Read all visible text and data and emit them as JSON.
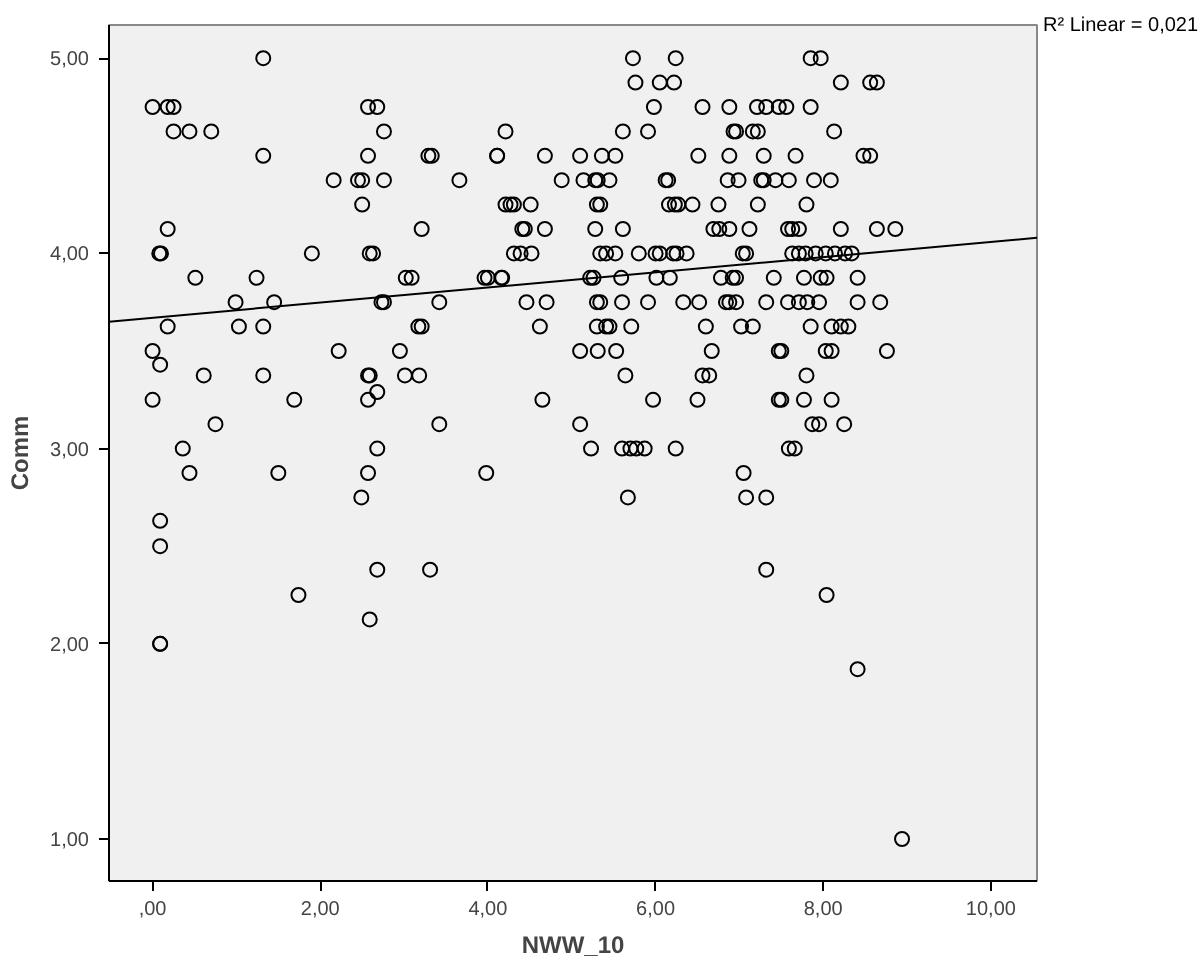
{
  "chart_data": {
    "type": "scatter",
    "xlabel": "NWW_10",
    "ylabel": "Comm",
    "annotations": [
      "R² Linear = 0,021"
    ],
    "xlim": [
      -0.52,
      10.55
    ],
    "ylim": [
      0.785,
      5.17
    ],
    "xticks": [
      {
        "value": 0,
        "label": ",00"
      },
      {
        "value": 2,
        "label": "2,00"
      },
      {
        "value": 4,
        "label": "4,00"
      },
      {
        "value": 6,
        "label": "6,00"
      },
      {
        "value": 8,
        "label": "8,00"
      },
      {
        "value": 10,
        "label": "10,00"
      }
    ],
    "yticks": [
      {
        "value": 1,
        "label": "1,00"
      },
      {
        "value": 2,
        "label": "2,00"
      },
      {
        "value": 3,
        "label": "3,00"
      },
      {
        "value": 4,
        "label": "4,00"
      },
      {
        "value": 5,
        "label": "5,00"
      }
    ],
    "grid": false,
    "series": [
      {
        "marker": "circle",
        "color": "#000000",
        "x": [
          1.32,
          0,
          0.18,
          0.25,
          2.57,
          2.68,
          0.25,
          0.44,
          0.7,
          2.76,
          4.21,
          1.32,
          2.57,
          3.29,
          3.33,
          4.11,
          2.16,
          2.45,
          2.5,
          2.76,
          3.66,
          2.5,
          4.21,
          0.18,
          3.21,
          0.08,
          0.1,
          1.9,
          2.59,
          2.63,
          0.51,
          1.24,
          3.02,
          3.09,
          3.96,
          4.16,
          0.99,
          1.45,
          2.73,
          2.76,
          3.42,
          0.18,
          1.03,
          1.32,
          3.17,
          3.21,
          0,
          2.22,
          2.95,
          0.09,
          0.61,
          1.32,
          2.57,
          2.59,
          3.01,
          3.18,
          0,
          1.69,
          2.57,
          2.68,
          0.75,
          3.42,
          0.36,
          2.68,
          0.44,
          1.5,
          2.57,
          3.98,
          2.49,
          0.09,
          0.09,
          2.68,
          3.31,
          1.74,
          2.59,
          0.09,
          0.09,
          5.73,
          6.24,
          5.76,
          6.05,
          6.22,
          5.98,
          6.56,
          6.88,
          7.21,
          7.32,
          7.47,
          5.61,
          5.91,
          6.93,
          6.96,
          7.16,
          7.22,
          4.11,
          4.68,
          5.1,
          5.36,
          5.52,
          6.51,
          6.88,
          7.29,
          4.88,
          5.14,
          5.28,
          5.31,
          5.45,
          6.12,
          6.15,
          6.86,
          6.99,
          7.26,
          7.29,
          7.43,
          4.27,
          4.31,
          4.51,
          5.3,
          5.34,
          6.16,
          6.23,
          6.27,
          6.44,
          6.75,
          7.22,
          4.41,
          4.44,
          4.68,
          5.28,
          5.61,
          6.69,
          6.76,
          6.88,
          7.12,
          4.31,
          4.39,
          4.52,
          5.34,
          5.41,
          5.52,
          5.8,
          6.0,
          6.05,
          6.21,
          6.25,
          6.37,
          7.04,
          7.08,
          4.0,
          4.17,
          5.22,
          5.26,
          5.59,
          6.01,
          6.17,
          6.78,
          6.92,
          6.96,
          7.41,
          4.46,
          4.7,
          5.3,
          5.34,
          5.6,
          5.91,
          6.33,
          6.52,
          6.84,
          6.88,
          6.96,
          7.32,
          4.62,
          5.3,
          5.41,
          5.45,
          5.71,
          6.6,
          7.02,
          7.16,
          5.1,
          5.31,
          5.53,
          6.67,
          7.47,
          5.64,
          6.56,
          6.64,
          4.65,
          5.97,
          6.5,
          7.47,
          5.1,
          5.23,
          5.6,
          5.7,
          5.77,
          5.87,
          6.24,
          7.05,
          5.67,
          7.08,
          7.32,
          7.32,
          7.85,
          7.97,
          8.21,
          8.56,
          8.64,
          7.56,
          7.85,
          8.13,
          7.67,
          8.48,
          8.56,
          7.59,
          7.89,
          8.09,
          7.8,
          7.58,
          7.63,
          7.71,
          8.21,
          8.64,
          8.86,
          7.63,
          7.71,
          7.79,
          7.91,
          8.03,
          8.14,
          8.26,
          8.34,
          7.77,
          7.97,
          8.04,
          8.41,
          7.58,
          7.71,
          7.81,
          7.95,
          8.41,
          8.68,
          7.85,
          8.1,
          8.21,
          8.3,
          7.5,
          8.03,
          8.1,
          8.76,
          7.8,
          7.5,
          7.77,
          8.1,
          7.87,
          7.95,
          8.25,
          7.59,
          7.66,
          8.04,
          8.41,
          8.94
        ],
        "values": [
          5.0,
          4.75,
          4.75,
          4.75,
          4.75,
          4.75,
          4.625,
          4.625,
          4.625,
          4.625,
          4.625,
          4.5,
          4.5,
          4.5,
          4.5,
          4.5,
          4.375,
          4.375,
          4.375,
          4.375,
          4.375,
          4.25,
          4.25,
          4.125,
          4.125,
          4.0,
          4.0,
          4.0,
          4.0,
          4.0,
          3.875,
          3.875,
          3.875,
          3.875,
          3.875,
          3.875,
          3.75,
          3.75,
          3.75,
          3.75,
          3.75,
          3.625,
          3.625,
          3.625,
          3.625,
          3.625,
          3.5,
          3.5,
          3.5,
          3.43,
          3.375,
          3.375,
          3.375,
          3.375,
          3.375,
          3.375,
          3.25,
          3.25,
          3.25,
          3.29,
          3.125,
          3.125,
          3.0,
          3.0,
          2.875,
          2.875,
          2.875,
          2.875,
          2.75,
          2.63,
          2.5,
          2.38,
          2.38,
          2.25,
          2.125,
          2.0,
          2.0,
          5.0,
          5.0,
          4.875,
          4.875,
          4.875,
          4.75,
          4.75,
          4.75,
          4.75,
          4.75,
          4.75,
          4.625,
          4.625,
          4.625,
          4.625,
          4.625,
          4.625,
          4.5,
          4.5,
          4.5,
          4.5,
          4.5,
          4.5,
          4.5,
          4.5,
          4.375,
          4.375,
          4.375,
          4.375,
          4.375,
          4.375,
          4.375,
          4.375,
          4.375,
          4.375,
          4.375,
          4.375,
          4.25,
          4.25,
          4.25,
          4.25,
          4.25,
          4.25,
          4.25,
          4.25,
          4.25,
          4.25,
          4.25,
          4.125,
          4.125,
          4.125,
          4.125,
          4.125,
          4.125,
          4.125,
          4.125,
          4.125,
          4.0,
          4.0,
          4.0,
          4.0,
          4.0,
          4.0,
          4.0,
          4.0,
          4.0,
          4.0,
          4.0,
          4.0,
          4.0,
          4.0,
          3.875,
          3.875,
          3.875,
          3.875,
          3.875,
          3.875,
          3.875,
          3.875,
          3.875,
          3.875,
          3.875,
          3.75,
          3.75,
          3.75,
          3.75,
          3.75,
          3.75,
          3.75,
          3.75,
          3.75,
          3.75,
          3.75,
          3.75,
          3.625,
          3.625,
          3.625,
          3.625,
          3.625,
          3.625,
          3.625,
          3.625,
          3.5,
          3.5,
          3.5,
          3.5,
          3.5,
          3.375,
          3.375,
          3.375,
          3.25,
          3.25,
          3.25,
          3.25,
          3.125,
          3.0,
          3.0,
          3.0,
          3.0,
          3.0,
          3.0,
          2.875,
          2.75,
          2.75,
          2.75,
          2.38,
          5.0,
          5.0,
          4.875,
          4.875,
          4.875,
          4.75,
          4.75,
          4.625,
          4.5,
          4.5,
          4.5,
          4.375,
          4.375,
          4.375,
          4.25,
          4.125,
          4.125,
          4.125,
          4.125,
          4.125,
          4.125,
          4.0,
          4.0,
          4.0,
          4.0,
          4.0,
          4.0,
          4.0,
          4.0,
          3.875,
          3.875,
          3.875,
          3.875,
          3.75,
          3.75,
          3.75,
          3.75,
          3.75,
          3.75,
          3.625,
          3.625,
          3.625,
          3.625,
          3.5,
          3.5,
          3.5,
          3.5,
          3.375,
          3.25,
          3.25,
          3.25,
          3.125,
          3.125,
          3.125,
          3.0,
          3.0,
          2.25,
          1.87,
          1.0
        ]
      },
      {
        "type": "line",
        "marker": "none",
        "color": "#000000",
        "x": [
          -0.52,
          10.55
        ],
        "values": [
          3.65,
          4.08
        ]
      }
    ]
  }
}
